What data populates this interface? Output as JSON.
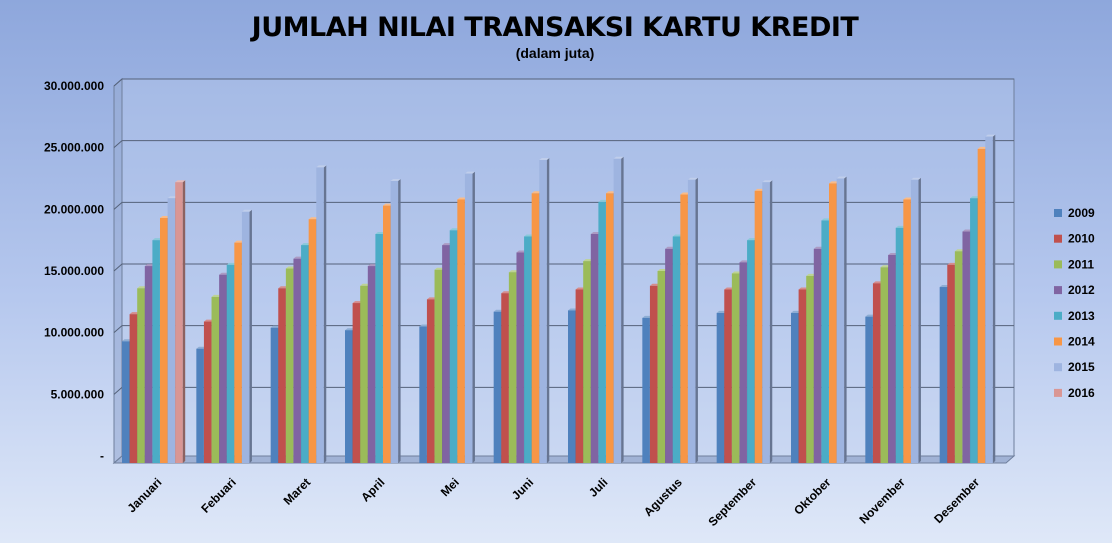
{
  "chart_data": {
    "type": "bar",
    "title": "JUMLAH NILAI TRANSAKSI KARTU KREDIT",
    "subtitle": "(dalam juta)",
    "xlabel": "",
    "ylabel": "",
    "ylim": [
      0,
      30000000
    ],
    "y_ticks": [
      0,
      5000000,
      10000000,
      15000000,
      20000000,
      25000000,
      30000000
    ],
    "y_tick_labels": [
      "-",
      "5.000.000",
      "10.000.000",
      "15.000.000",
      "20.000.000",
      "25.000.000",
      "30.000.000"
    ],
    "grid": true,
    "legend_position": "right",
    "categories": [
      "Januari",
      "Febuari",
      "Maret",
      "April",
      "Mei",
      "Juni",
      "Juli",
      "Agustus",
      "September",
      "Oktober",
      "November",
      "Desember"
    ],
    "series": [
      {
        "name": "2009",
        "color": "#4f81bd",
        "values": [
          9300000,
          8700000,
          10400000,
          10200000,
          10500000,
          11700000,
          11800000,
          11200000,
          11600000,
          11600000,
          11300000,
          13700000
        ]
      },
      {
        "name": "2010",
        "color": "#c0504d",
        "values": [
          11500000,
          10900000,
          13600000,
          12400000,
          12700000,
          13200000,
          13500000,
          13800000,
          13500000,
          13500000,
          14000000,
          15500000
        ]
      },
      {
        "name": "2011",
        "color": "#9bbb59",
        "values": [
          13600000,
          12900000,
          15200000,
          13800000,
          15100000,
          14900000,
          15800000,
          15000000,
          14800000,
          14600000,
          15300000,
          16600000
        ]
      },
      {
        "name": "2012",
        "color": "#8064a2",
        "values": [
          15400000,
          14700000,
          16000000,
          15400000,
          17100000,
          16500000,
          18000000,
          16800000,
          15700000,
          16800000,
          16300000,
          18200000
        ]
      },
      {
        "name": "2013",
        "color": "#4bacc6",
        "values": [
          17500000,
          15500000,
          17100000,
          18000000,
          18300000,
          17800000,
          20600000,
          17800000,
          17500000,
          19100000,
          18500000,
          20900000
        ]
      },
      {
        "name": "2014",
        "color": "#f79646",
        "values": [
          19300000,
          17300000,
          19200000,
          20300000,
          20800000,
          21300000,
          21300000,
          21200000,
          21500000,
          22100000,
          20800000,
          24900000
        ]
      },
      {
        "name": "2015",
        "color": "#9eb4e0",
        "values": [
          20900000,
          19800000,
          23400000,
          22300000,
          22900000,
          24000000,
          24100000,
          22400000,
          22200000,
          22500000,
          22400000,
          25900000
        ]
      },
      {
        "name": "2016",
        "color": "#d99694",
        "values": [
          22200000,
          null,
          null,
          null,
          null,
          null,
          null,
          null,
          null,
          null,
          null,
          null
        ]
      }
    ]
  }
}
